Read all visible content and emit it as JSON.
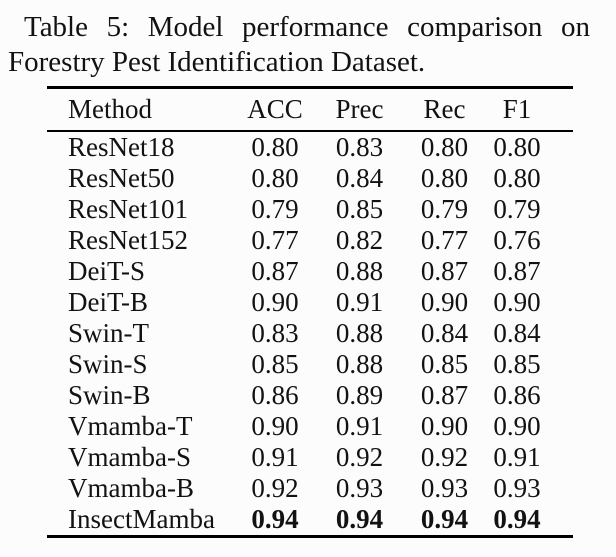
{
  "caption": {
    "line1": "Table 5: Model performance comparison on",
    "line2": "Forestry Pest Identification Dataset."
  },
  "table": {
    "columns": [
      "Method",
      "ACC",
      "Prec",
      "Rec",
      "F1"
    ],
    "rows": [
      {
        "method": "ResNet18",
        "values": [
          "0.80",
          "0.83",
          "0.80",
          "0.80"
        ],
        "bold": false
      },
      {
        "method": "ResNet50",
        "values": [
          "0.80",
          "0.84",
          "0.80",
          "0.80"
        ],
        "bold": false
      },
      {
        "method": "ResNet101",
        "values": [
          "0.79",
          "0.85",
          "0.79",
          "0.79"
        ],
        "bold": false
      },
      {
        "method": "ResNet152",
        "values": [
          "0.77",
          "0.82",
          "0.77",
          "0.76"
        ],
        "bold": false
      },
      {
        "method": "DeiT-S",
        "values": [
          "0.87",
          "0.88",
          "0.87",
          "0.87"
        ],
        "bold": false
      },
      {
        "method": "DeiT-B",
        "values": [
          "0.90",
          "0.91",
          "0.90",
          "0.90"
        ],
        "bold": false
      },
      {
        "method": "Swin-T",
        "values": [
          "0.83",
          "0.88",
          "0.84",
          "0.84"
        ],
        "bold": false
      },
      {
        "method": "Swin-S",
        "values": [
          "0.85",
          "0.88",
          "0.85",
          "0.85"
        ],
        "bold": false
      },
      {
        "method": "Swin-B",
        "values": [
          "0.86",
          "0.89",
          "0.87",
          "0.86"
        ],
        "bold": false
      },
      {
        "method": "Vmamba-T",
        "values": [
          "0.90",
          "0.91",
          "0.90",
          "0.90"
        ],
        "bold": false
      },
      {
        "method": "Vmamba-S",
        "values": [
          "0.91",
          "0.92",
          "0.92",
          "0.91"
        ],
        "bold": false
      },
      {
        "method": "Vmamba-B",
        "values": [
          "0.92",
          "0.93",
          "0.93",
          "0.93"
        ],
        "bold": false
      },
      {
        "method": "InsectMamba",
        "values": [
          "0.94",
          "0.94",
          "0.94",
          "0.94"
        ],
        "bold": true
      }
    ]
  },
  "colors": {
    "background": "#fcfcfc",
    "text": "#121212",
    "rule": "#000000"
  }
}
